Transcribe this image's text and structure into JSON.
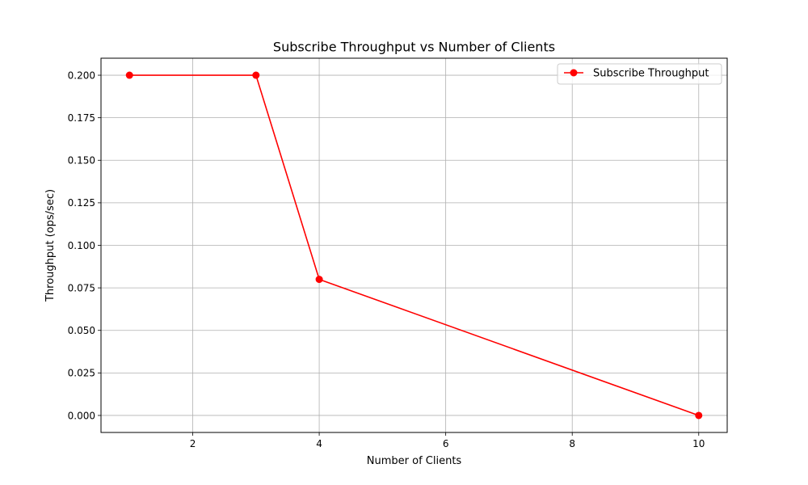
{
  "chart_data": {
    "type": "line",
    "title": "Subscribe Throughput vs Number of Clients",
    "xlabel": "Number of Clients",
    "ylabel": "Throughput (ops/sec)",
    "xlim": [
      0.55,
      10.45
    ],
    "ylim": [
      -0.01,
      0.21
    ],
    "xticks": [
      2,
      4,
      6,
      8,
      10
    ],
    "yticks": [
      0.0,
      0.025,
      0.05,
      0.075,
      0.1,
      0.125,
      0.15,
      0.175,
      0.2
    ],
    "xtick_labels": [
      "2",
      "4",
      "6",
      "8",
      "10"
    ],
    "ytick_labels": [
      "0.000",
      "0.025",
      "0.050",
      "0.075",
      "0.100",
      "0.125",
      "0.150",
      "0.175",
      "0.200"
    ],
    "grid": true,
    "legend_position": "top-right",
    "series": [
      {
        "name": "Subscribe Throughput",
        "color": "#ff0000",
        "marker": "circle",
        "x": [
          1,
          3,
          4,
          10
        ],
        "y": [
          0.2,
          0.2,
          0.08,
          0.0
        ]
      }
    ]
  }
}
